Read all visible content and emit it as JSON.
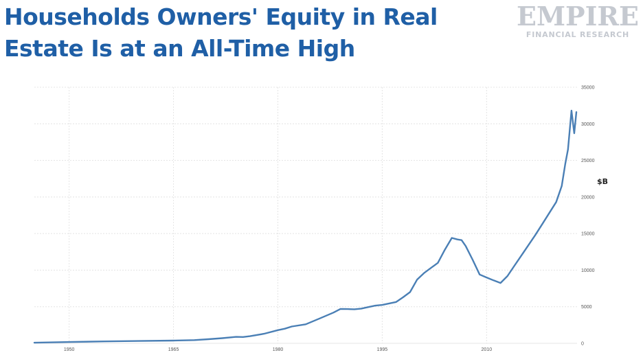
{
  "header": {
    "title_line1": "Households Owners' Equity in Real",
    "title_line2": "Estate Is at an All-Time High"
  },
  "logo": {
    "word": "EMPIRE",
    "sub": "FINANCIAL RESEARCH"
  },
  "colors": {
    "title": "#1f5fa6",
    "series": "#4a7fb5",
    "grid": "#e4e4e4",
    "logo": "#c5c9d0"
  },
  "chart_data": {
    "type": "line",
    "title": "Households Owners' Equity in Real Estate Is at an All-Time High",
    "xlabel": "",
    "ylabel": "$B",
    "xlim": [
      1945,
      2023
    ],
    "ylim": [
      0,
      35000
    ],
    "x_ticks": [
      1950,
      1965,
      1980,
      1995,
      2010
    ],
    "y_ticks": [
      0,
      5000,
      10000,
      15000,
      20000,
      25000,
      30000,
      35000
    ],
    "grid": true,
    "series": [
      {
        "name": "",
        "x": [
          1945,
          1950,
          1955,
          1960,
          1965,
          1968,
          1970,
          1972,
          1974,
          1975,
          1976,
          1978,
          1980,
          1981,
          1982,
          1984,
          1986,
          1988,
          1989,
          1990,
          1991,
          1992,
          1993,
          1994,
          1995,
          1996,
          1997,
          1998,
          1999,
          2000,
          2001,
          2002,
          2003,
          2004,
          2005,
          2005.8,
          2006.4,
          2007,
          2008,
          2009,
          2010,
          2011,
          2012,
          2013,
          2014,
          2015,
          2016,
          2017,
          2018,
          2019,
          2020,
          2020.8,
          2021.3,
          2021.7,
          2022.2,
          2022.6,
          2022.9
        ],
        "y": [
          80,
          180,
          260,
          320,
          380,
          440,
          560,
          700,
          880,
          860,
          980,
          1300,
          1800,
          2000,
          2300,
          2600,
          3400,
          4200,
          4700,
          4680,
          4650,
          4750,
          4950,
          5150,
          5250,
          5450,
          5650,
          6300,
          7000,
          8700,
          9600,
          10300,
          11000,
          12800,
          14400,
          14200,
          14100,
          13300,
          11400,
          9400,
          9000,
          8600,
          8250,
          9200,
          10600,
          12000,
          13400,
          14800,
          16300,
          17800,
          19300,
          21500,
          24500,
          26500,
          31800,
          28700,
          31600
        ]
      }
    ]
  }
}
